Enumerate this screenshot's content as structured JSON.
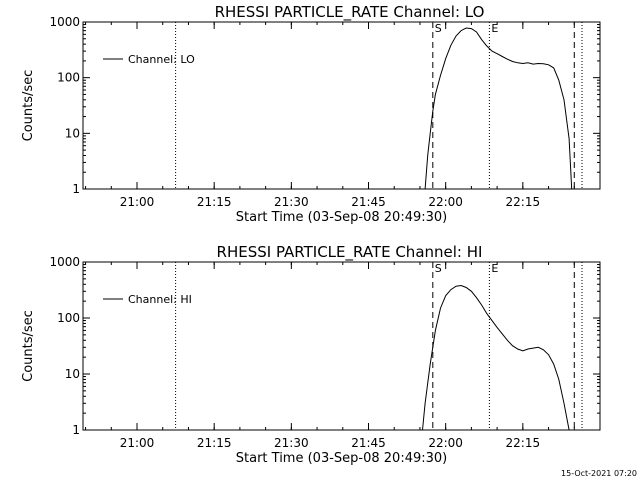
{
  "chart_data": [
    {
      "type": "line",
      "title": "RHESSI PARTICLE_RATE Channel: LO",
      "xlabel": "Start Time (03-Sep-08 20:49:30)",
      "ylabel": "Counts/sec",
      "y_scale": "log",
      "ylim": [
        1,
        1000
      ],
      "yticks": [
        "1",
        "10",
        "100",
        "1000"
      ],
      "xlim": [
        "20:49:30",
        "22:30:00"
      ],
      "xticks": [
        "21:00",
        "21:15",
        "21:30",
        "21:45",
        "22:00",
        "22:15"
      ],
      "legend": {
        "position": "top-left",
        "entries": [
          "Channel: LO"
        ]
      },
      "markers": [
        {
          "label": "S",
          "time": "21:57:30",
          "style": "dashed"
        },
        {
          "label": "E",
          "time": "22:08:30",
          "style": "dotted"
        }
      ],
      "vlines": [
        {
          "time": "21:07:30",
          "style": "dotted"
        },
        {
          "time": "22:25:00",
          "style": "dashed"
        },
        {
          "time": "22:26:30",
          "style": "dotted"
        }
      ],
      "series": [
        {
          "name": "Channel: LO",
          "points": [
            [
              "21:56:00",
              1
            ],
            [
              "21:56:30",
              4
            ],
            [
              "21:57:00",
              10
            ],
            [
              "21:57:30",
              25
            ],
            [
              "21:58:00",
              50
            ],
            [
              "21:59:00",
              110
            ],
            [
              "22:00:00",
              220
            ],
            [
              "22:01:00",
              380
            ],
            [
              "22:02:00",
              560
            ],
            [
              "22:03:00",
              700
            ],
            [
              "22:04:00",
              780
            ],
            [
              "22:05:00",
              760
            ],
            [
              "22:06:00",
              660
            ],
            [
              "22:07:00",
              480
            ],
            [
              "22:08:00",
              370
            ],
            [
              "22:09:00",
              300
            ],
            [
              "22:10:00",
              270
            ],
            [
              "22:11:00",
              240
            ],
            [
              "22:12:00",
              215
            ],
            [
              "22:13:00",
              195
            ],
            [
              "22:14:00",
              185
            ],
            [
              "22:15:00",
              180
            ],
            [
              "22:16:00",
              185
            ],
            [
              "22:17:00",
              175
            ],
            [
              "22:18:00",
              180
            ],
            [
              "22:19:00",
              178
            ],
            [
              "22:20:00",
              170
            ],
            [
              "22:21:00",
              150
            ],
            [
              "22:22:00",
              90
            ],
            [
              "22:23:00",
              40
            ],
            [
              "22:24:00",
              8
            ],
            [
              "22:24:30",
              1
            ]
          ]
        }
      ]
    },
    {
      "type": "line",
      "title": "RHESSI PARTICLE_RATE Channel: HI",
      "xlabel": "Start Time (03-Sep-08 20:49:30)",
      "ylabel": "Counts/sec",
      "y_scale": "log",
      "ylim": [
        1,
        1000
      ],
      "yticks": [
        "1",
        "10",
        "100",
        "1000"
      ],
      "xlim": [
        "20:49:30",
        "22:30:00"
      ],
      "xticks": [
        "21:00",
        "21:15",
        "21:30",
        "21:45",
        "22:00",
        "22:15"
      ],
      "legend": {
        "position": "top-left",
        "entries": [
          "Channel: HI"
        ]
      },
      "markers": [
        {
          "label": "S",
          "time": "21:57:30",
          "style": "dashed"
        },
        {
          "label": "E",
          "time": "22:08:30",
          "style": "dotted"
        }
      ],
      "vlines": [
        {
          "time": "21:07:30",
          "style": "dotted"
        },
        {
          "time": "22:25:00",
          "style": "dashed"
        },
        {
          "time": "22:26:30",
          "style": "dotted"
        }
      ],
      "series": [
        {
          "name": "Channel: HI",
          "points": [
            [
              "21:55:30",
              1
            ],
            [
              "21:56:00",
              3
            ],
            [
              "21:57:00",
              15
            ],
            [
              "21:58:00",
              60
            ],
            [
              "21:59:00",
              150
            ],
            [
              "22:00:00",
              250
            ],
            [
              "22:01:00",
              320
            ],
            [
              "22:02:00",
              370
            ],
            [
              "22:03:00",
              380
            ],
            [
              "22:04:00",
              350
            ],
            [
              "22:05:00",
              300
            ],
            [
              "22:06:00",
              230
            ],
            [
              "22:07:00",
              170
            ],
            [
              "22:08:00",
              120
            ],
            [
              "22:09:00",
              90
            ],
            [
              "22:10:00",
              68
            ],
            [
              "22:11:00",
              52
            ],
            [
              "22:12:00",
              40
            ],
            [
              "22:13:00",
              32
            ],
            [
              "22:14:00",
              28
            ],
            [
              "22:15:00",
              26
            ],
            [
              "22:16:00",
              28
            ],
            [
              "22:17:00",
              29
            ],
            [
              "22:18:00",
              30
            ],
            [
              "22:19:00",
              27
            ],
            [
              "22:20:00",
              22
            ],
            [
              "22:21:00",
              15
            ],
            [
              "22:22:00",
              8
            ],
            [
              "22:23:00",
              3
            ],
            [
              "22:24:00",
              1
            ]
          ]
        }
      ]
    }
  ],
  "footer": {
    "timestamp": "15-Oct-2021 07:20"
  }
}
